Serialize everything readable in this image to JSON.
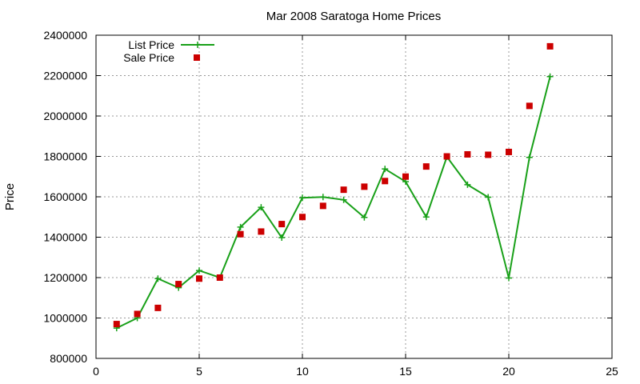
{
  "chart_data": {
    "type": "line",
    "title": "Mar 2008 Saratoga Home Prices",
    "xlabel": "",
    "ylabel": "Price",
    "xlim": [
      0,
      25
    ],
    "ylim": [
      800000,
      2400000
    ],
    "x_ticks": [
      0,
      5,
      10,
      15,
      20,
      25
    ],
    "y_ticks": [
      800000,
      1000000,
      1200000,
      1400000,
      1600000,
      1800000,
      2000000,
      2200000,
      2400000
    ],
    "grid": true,
    "legend_position": "top-left",
    "series": [
      {
        "name": "List Price",
        "style": "linespoints",
        "color": "#18a018",
        "x": [
          1,
          2,
          3,
          4,
          5,
          6,
          7,
          8,
          9,
          10,
          11,
          12,
          13,
          14,
          15,
          16,
          17,
          18,
          19,
          20,
          21,
          22
        ],
        "values": [
          950000,
          1000000,
          1195000,
          1150000,
          1235000,
          1200000,
          1450000,
          1548000,
          1398000,
          1595000,
          1599000,
          1585000,
          1498000,
          1738000,
          1675000,
          1500000,
          1798000,
          1660000,
          1598000,
          1198000,
          1795000,
          2195000
        ]
      },
      {
        "name": "Sale Price",
        "style": "points",
        "color": "#cc0000",
        "x": [
          1,
          2,
          3,
          4,
          5,
          6,
          7,
          8,
          9,
          10,
          11,
          12,
          13,
          14,
          15,
          16,
          17,
          18,
          19,
          20,
          21,
          22
        ],
        "values": [
          970000,
          1020000,
          1050000,
          1168000,
          1195000,
          1200000,
          1415000,
          1428000,
          1465000,
          1500000,
          1555000,
          1635000,
          1650000,
          1678000,
          1700000,
          1750000,
          1800000,
          1810000,
          1808000,
          1822000,
          2050000,
          2345000
        ]
      }
    ]
  }
}
